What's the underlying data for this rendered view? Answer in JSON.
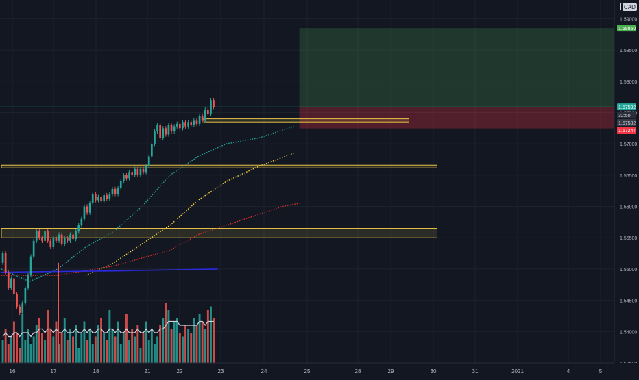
{
  "app": {
    "currency": "CAD"
  },
  "colors": {
    "background": "#131722",
    "up": "#26a69a",
    "down": "#ef5350",
    "zone": "#e8c34a",
    "target": "#4caf50",
    "stop": "#f23645",
    "ma_fast": "#26a69a",
    "ma_mid": "#f5d142",
    "ma_slow": "#e03030",
    "ma_blue": "#2a2ae0",
    "volume_ma": "#d1d4dc"
  },
  "chart_data": {
    "type": "candlestick",
    "title": "",
    "xlabel": "",
    "ylabel": "",
    "ylim": [
      1.535,
      1.593
    ],
    "y_ticks": [
      "1.59000",
      "1.58500",
      "1.58000",
      "1.57500",
      "1.57000",
      "1.56500",
      "1.56000",
      "1.55500",
      "1.55000",
      "1.54500",
      "1.54000",
      "1.53500"
    ],
    "x_ticks": [
      "16",
      "17",
      "18",
      "21",
      "22",
      "23",
      "24",
      "25",
      "28",
      "29",
      "30",
      "31",
      "2021",
      "4",
      "5"
    ],
    "price_labels": {
      "target": "1.58850",
      "current": "1.57592",
      "countdown": "32:50",
      "entry": "1.57582",
      "stop": "1.57247"
    },
    "price_series": [
      [
        1.551,
        1.5525
      ],
      [
        1.5525,
        1.5495
      ],
      [
        1.5495,
        1.547
      ],
      [
        1.547,
        1.5485
      ],
      [
        1.5485,
        1.546
      ],
      [
        1.546,
        1.544
      ],
      [
        1.544,
        1.543
      ],
      [
        1.543,
        1.5445
      ],
      [
        1.5445,
        1.547
      ],
      [
        1.547,
        1.549
      ],
      [
        1.549,
        1.552
      ],
      [
        1.552,
        1.5545
      ],
      [
        1.5545,
        1.556
      ],
      [
        1.556,
        1.555
      ],
      [
        1.555,
        1.5545
      ],
      [
        1.5545,
        1.556
      ],
      [
        1.556,
        1.5545
      ],
      [
        1.5545,
        1.5535
      ],
      [
        1.5535,
        1.555
      ],
      [
        1.555,
        1.5545
      ],
      [
        1.5545,
        1.5555
      ],
      [
        1.5555,
        1.554
      ],
      [
        1.554,
        1.555
      ],
      [
        1.555,
        1.5545
      ],
      [
        1.5545,
        1.5555
      ],
      [
        1.5555,
        1.5548
      ],
      [
        1.5548,
        1.556
      ],
      [
        1.556,
        1.557
      ],
      [
        1.557,
        1.558
      ],
      [
        1.558,
        1.56
      ],
      [
        1.56,
        1.559
      ],
      [
        1.559,
        1.5605
      ],
      [
        1.5605,
        1.562
      ],
      [
        1.562,
        1.561
      ],
      [
        1.561,
        1.5615
      ],
      [
        1.5615,
        1.5608
      ],
      [
        1.5608,
        1.5618
      ],
      [
        1.5618,
        1.5612
      ],
      [
        1.5612,
        1.562
      ],
      [
        1.562,
        1.5628
      ],
      [
        1.5628,
        1.562
      ],
      [
        1.562,
        1.563
      ],
      [
        1.563,
        1.564
      ],
      [
        1.564,
        1.565
      ],
      [
        1.565,
        1.5645
      ],
      [
        1.5645,
        1.5655
      ],
      [
        1.5655,
        1.565
      ],
      [
        1.565,
        1.566
      ],
      [
        1.566,
        1.565
      ],
      [
        1.565,
        1.566
      ],
      [
        1.566,
        1.5655
      ],
      [
        1.5655,
        1.5665
      ],
      [
        1.5665,
        1.568
      ],
      [
        1.568,
        1.57
      ],
      [
        1.57,
        1.572
      ],
      [
        1.572,
        1.573
      ],
      [
        1.573,
        1.571
      ],
      [
        1.571,
        1.5725
      ],
      [
        1.5725,
        1.5715
      ],
      [
        1.5715,
        1.573
      ],
      [
        1.573,
        1.572
      ],
      [
        1.572,
        1.5728
      ],
      [
        1.5728,
        1.5732
      ],
      [
        1.5732,
        1.5725
      ],
      [
        1.5725,
        1.5735
      ],
      [
        1.5735,
        1.5728
      ],
      [
        1.5728,
        1.5735
      ],
      [
        1.5735,
        1.573
      ],
      [
        1.573,
        1.5738
      ],
      [
        1.5738,
        1.5732
      ],
      [
        1.5732,
        1.5745
      ],
      [
        1.5745,
        1.5738
      ],
      [
        1.5738,
        1.5755
      ],
      [
        1.5755,
        1.5748
      ],
      [
        1.5748,
        1.577
      ],
      [
        1.577,
        1.5759
      ]
    ],
    "zones": [
      {
        "name": "resistance-zone-top",
        "y_low": 1.5735,
        "y_high": 1.574,
        "x_start": 72,
        "x_end": 145
      },
      {
        "name": "support-zone-mid",
        "y_low": 1.5663,
        "y_high": 1.5666,
        "x_start": 0,
        "x_end": 155
      },
      {
        "name": "support-zone-low",
        "y_low": 1.555,
        "y_high": 1.5565,
        "x_start": 0,
        "x_end": 155
      }
    ],
    "position": {
      "entry": 1.57582,
      "target": 1.5885,
      "stop": 1.57247,
      "x_start": 106,
      "x_end": 287
    },
    "moving_averages": [
      {
        "name": "ma-fast",
        "points": [
          [
            0,
            1.55
          ],
          [
            10,
            1.548
          ],
          [
            20,
            1.55
          ],
          [
            30,
            1.5535
          ],
          [
            40,
            1.556
          ],
          [
            50,
            1.56
          ],
          [
            60,
            1.565
          ],
          [
            70,
            1.568
          ],
          [
            80,
            1.57
          ],
          [
            92,
            1.571
          ],
          [
            104,
            1.5728
          ]
        ]
      },
      {
        "name": "ma-mid",
        "points": [
          [
            30,
            1.549
          ],
          [
            40,
            1.551
          ],
          [
            50,
            1.554
          ],
          [
            60,
            1.557
          ],
          [
            70,
            1.561
          ],
          [
            80,
            1.564
          ],
          [
            92,
            1.5665
          ],
          [
            104,
            1.5685
          ]
        ]
      },
      {
        "name": "ma-slow",
        "points": [
          [
            0,
            1.549
          ],
          [
            20,
            1.549
          ],
          [
            40,
            1.5505
          ],
          [
            60,
            1.553
          ],
          [
            70,
            1.5555
          ],
          [
            80,
            1.557
          ],
          [
            90,
            1.5585
          ],
          [
            100,
            1.56
          ],
          [
            106,
            1.5605
          ]
        ]
      },
      {
        "name": "ma-blue",
        "points": [
          [
            0,
            1.5495
          ],
          [
            40,
            1.5497
          ],
          [
            77,
            1.55
          ]
        ]
      }
    ],
    "volume": [
      6,
      9,
      5,
      7,
      11,
      8,
      4,
      13,
      6,
      9,
      5,
      7,
      10,
      12,
      8,
      6,
      14,
      9,
      7,
      11,
      5,
      8,
      12,
      6,
      9,
      7,
      10,
      4,
      8,
      11,
      6,
      9,
      5,
      7,
      10,
      12,
      8,
      6,
      14,
      9,
      7,
      11,
      5,
      8,
      13,
      6,
      9,
      7,
      10,
      4,
      8,
      11,
      6,
      9,
      5,
      7,
      10,
      12,
      16,
      14,
      9,
      11,
      12,
      8,
      7,
      10,
      9,
      8,
      12,
      10,
      13,
      11,
      9,
      14,
      15,
      12
    ],
    "volume_ma": [
      7,
      8,
      7,
      7,
      8,
      8,
      7,
      8,
      8,
      8,
      7,
      8,
      8,
      9,
      9,
      8,
      9,
      9,
      8,
      9,
      8,
      8,
      9,
      8,
      8,
      8,
      9,
      8,
      8,
      9,
      8,
      9,
      8,
      8,
      9,
      9,
      8,
      8,
      9,
      9,
      8,
      9,
      8,
      8,
      9,
      8,
      8,
      8,
      9,
      8,
      8,
      9,
      8,
      9,
      8,
      8,
      9,
      9,
      10,
      11,
      11,
      11,
      11,
      10,
      10,
      10,
      10,
      10,
      10,
      10,
      11,
      11,
      10,
      11,
      11,
      11
    ]
  }
}
